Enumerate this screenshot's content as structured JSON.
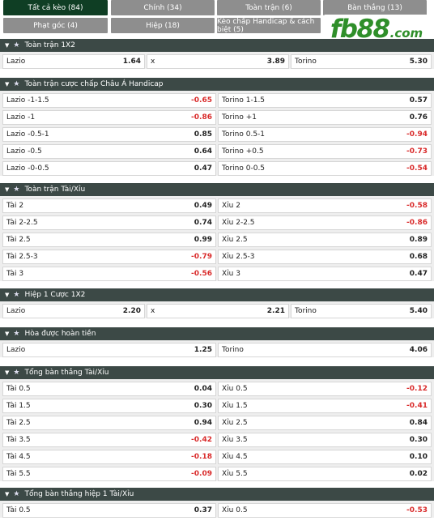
{
  "tabs": [
    {
      "label": "Tất cả kèo (84)",
      "active": true
    },
    {
      "label": "Chính (34)",
      "active": false
    },
    {
      "label": "Toàn trận (6)",
      "active": false
    },
    {
      "label": "Bàn thắng (13)",
      "active": false
    },
    {
      "label": "Phạt góc (4)",
      "active": false
    },
    {
      "label": "Hiệp (18)",
      "active": false
    },
    {
      "label": "Kèo chấp Handicap & cách biệt (5)",
      "active": false
    }
  ],
  "logo": {
    "text": "fb88",
    "suffix": ".com"
  },
  "sections": [
    {
      "title": "Toàn trận 1X2",
      "cols": 3,
      "rows": [
        [
          {
            "label": "Lazio",
            "value": "1.64"
          },
          {
            "label": "x",
            "value": "3.89"
          },
          {
            "label": "Torino",
            "value": "5.30"
          }
        ]
      ]
    },
    {
      "title": "Toàn trận cược chấp Châu Á Handicap",
      "cols": 2,
      "rows": [
        [
          {
            "label": "Lazio -1-1.5",
            "value": "-0.65"
          },
          {
            "label": "Torino 1-1.5",
            "value": "0.57"
          }
        ],
        [
          {
            "label": "Lazio -1",
            "value": "-0.86"
          },
          {
            "label": "Torino +1",
            "value": "0.76"
          }
        ],
        [
          {
            "label": "Lazio -0.5-1",
            "value": "0.85"
          },
          {
            "label": "Torino 0.5-1",
            "value": "-0.94"
          }
        ],
        [
          {
            "label": "Lazio -0.5",
            "value": "0.64"
          },
          {
            "label": "Torino +0.5",
            "value": "-0.73"
          }
        ],
        [
          {
            "label": "Lazio -0-0.5",
            "value": "0.47"
          },
          {
            "label": "Torino 0-0.5",
            "value": "-0.54"
          }
        ]
      ]
    },
    {
      "title": "Toàn trận Tài/Xỉu",
      "cols": 2,
      "rows": [
        [
          {
            "label": "Tài 2",
            "value": "0.49"
          },
          {
            "label": "Xỉu 2",
            "value": "-0.58"
          }
        ],
        [
          {
            "label": "Tài 2-2.5",
            "value": "0.74"
          },
          {
            "label": "Xỉu 2-2.5",
            "value": "-0.86"
          }
        ],
        [
          {
            "label": "Tài 2.5",
            "value": "0.99"
          },
          {
            "label": "Xỉu 2.5",
            "value": "0.89"
          }
        ],
        [
          {
            "label": "Tài 2.5-3",
            "value": "-0.79"
          },
          {
            "label": "Xỉu 2.5-3",
            "value": "0.68"
          }
        ],
        [
          {
            "label": "Tài 3",
            "value": "-0.56"
          },
          {
            "label": "Xỉu 3",
            "value": "0.47"
          }
        ]
      ]
    },
    {
      "title": "Hiệp 1 Cược 1X2",
      "cols": 3,
      "rows": [
        [
          {
            "label": "Lazio",
            "value": "2.20"
          },
          {
            "label": "x",
            "value": "2.21"
          },
          {
            "label": "Torino",
            "value": "5.40"
          }
        ]
      ]
    },
    {
      "title": "Hòa được hoàn tiền",
      "cols": 2,
      "rows": [
        [
          {
            "label": "Lazio",
            "value": "1.25"
          },
          {
            "label": "Torino",
            "value": "4.06"
          }
        ]
      ]
    },
    {
      "title": "Tổng bàn thắng Tài/Xỉu",
      "cols": 2,
      "rows": [
        [
          {
            "label": "Tài 0.5",
            "value": "0.04"
          },
          {
            "label": "Xỉu 0.5",
            "value": "-0.12"
          }
        ],
        [
          {
            "label": "Tài 1.5",
            "value": "0.30"
          },
          {
            "label": "Xỉu 1.5",
            "value": "-0.41"
          }
        ],
        [
          {
            "label": "Tài 2.5",
            "value": "0.94"
          },
          {
            "label": "Xỉu 2.5",
            "value": "0.84"
          }
        ],
        [
          {
            "label": "Tài 3.5",
            "value": "-0.42"
          },
          {
            "label": "Xỉu 3.5",
            "value": "0.30"
          }
        ],
        [
          {
            "label": "Tài 4.5",
            "value": "-0.18"
          },
          {
            "label": "Xỉu 4.5",
            "value": "0.10"
          }
        ],
        [
          {
            "label": "Tài 5.5",
            "value": "-0.09"
          },
          {
            "label": "Xỉu 5.5",
            "value": "0.02"
          }
        ]
      ]
    },
    {
      "title": "Tổng bàn thắng hiệp 1 Tài/Xỉu",
      "cols": 2,
      "rows": [
        [
          {
            "label": "Tài 0.5",
            "value": "0.37"
          },
          {
            "label": "Xỉu 0.5",
            "value": "-0.53"
          }
        ]
      ]
    }
  ]
}
